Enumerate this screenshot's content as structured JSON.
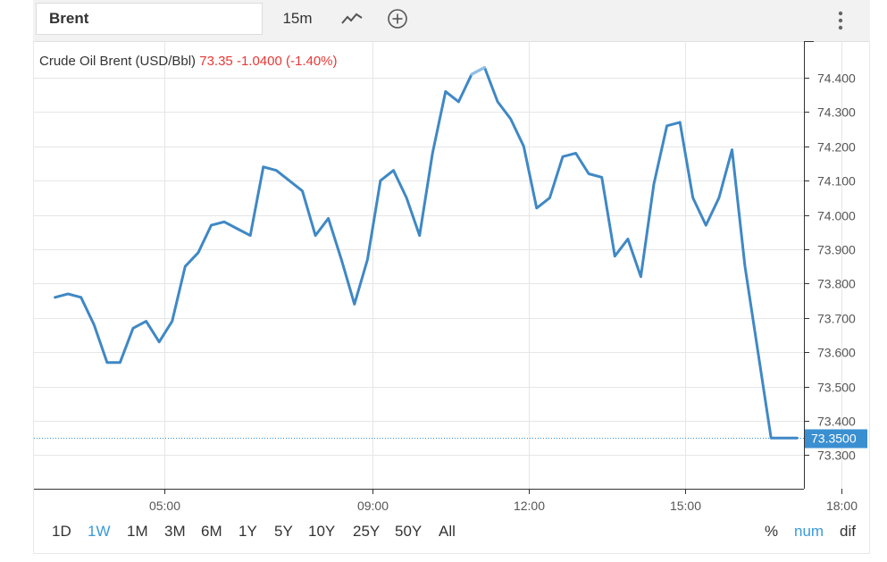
{
  "toolbar": {
    "symbol": "Brent",
    "interval": "15m"
  },
  "legend": {
    "name": "Crude Oil Brent (USD/Bbl)",
    "price": "73.35",
    "change": "-1.0400",
    "change_pct": "(-1.40%)"
  },
  "range_buttons": [
    {
      "label": "1D",
      "active": false
    },
    {
      "label": "1W",
      "active": true
    },
    {
      "label": "1M",
      "active": false
    },
    {
      "label": "3M",
      "active": false
    },
    {
      "label": "6M",
      "active": false
    },
    {
      "label": "1Y",
      "active": false
    },
    {
      "label": "5Y",
      "active": false
    },
    {
      "label": "10Y",
      "active": false
    },
    {
      "label": "25Y",
      "active": false
    },
    {
      "label": "50Y",
      "active": false
    },
    {
      "label": "All",
      "active": false
    }
  ],
  "mode_buttons": [
    {
      "label": "%",
      "active": false
    },
    {
      "label": "num",
      "active": true
    },
    {
      "label": "dif",
      "active": false
    }
  ],
  "colors": {
    "line": "#3f88c5",
    "line_highlight": "#8fbfe6",
    "current_price_tag": "#3a8fd1",
    "negative": "#e53935",
    "active_button": "#3a9ad9"
  },
  "chart_data": {
    "type": "line",
    "title": "",
    "xlabel": "",
    "ylabel": "",
    "x_ticks": [
      "05:00",
      "09:00",
      "12:00",
      "15:00",
      "18:00"
    ],
    "x_tick_hours": [
      5,
      9,
      12,
      15,
      18
    ],
    "ylim": [
      73.2,
      74.5
    ],
    "y_ticks": [
      "74.400",
      "74.300",
      "74.200",
      "74.100",
      "74.000",
      "73.900",
      "73.800",
      "73.700",
      "73.600",
      "73.500",
      "73.400",
      "73.300"
    ],
    "y_tick_values": [
      74.4,
      74.3,
      74.2,
      74.1,
      74.0,
      73.9,
      73.8,
      73.7,
      73.6,
      73.5,
      73.4,
      73.3
    ],
    "current_value": 73.35,
    "current_label": "73.3500",
    "grid": true,
    "series": [
      {
        "x": [
          2.9,
          3.15,
          3.4,
          3.65,
          3.9,
          4.15,
          4.4,
          4.65,
          4.9,
          5.15,
          5.4,
          5.65,
          5.9,
          6.15,
          6.4,
          6.65,
          6.9,
          7.15,
          7.4,
          7.65,
          7.9,
          8.15,
          8.4,
          8.65,
          8.9,
          9.15,
          9.4,
          9.65,
          9.9,
          10.15,
          10.4,
          10.65,
          10.9,
          11.15,
          11.4,
          11.65,
          11.9,
          12.15,
          12.4,
          12.65,
          12.9,
          13.15,
          13.4,
          13.65,
          13.9,
          14.15,
          14.4,
          14.65,
          14.9,
          15.15,
          15.4,
          15.65,
          15.9,
          16.15,
          16.4,
          16.65,
          16.9,
          17.15
        ],
        "y": [
          73.76,
          73.77,
          73.76,
          73.68,
          73.57,
          73.57,
          73.67,
          73.69,
          73.63,
          73.69,
          73.85,
          73.89,
          73.97,
          73.98,
          73.96,
          73.94,
          74.14,
          74.13,
          74.1,
          74.07,
          73.94,
          73.99,
          73.87,
          73.74,
          73.87,
          74.1,
          74.13,
          74.05,
          73.94,
          74.18,
          74.36,
          74.33,
          74.41,
          74.43,
          74.33,
          74.28,
          74.2,
          74.02,
          74.05,
          74.17,
          74.18,
          74.12,
          74.11,
          73.88,
          73.93,
          73.82,
          74.09,
          74.26,
          74.27,
          74.05,
          73.97,
          74.05,
          74.19,
          73.85,
          73.6,
          73.35,
          73.35,
          73.35
        ]
      }
    ]
  }
}
